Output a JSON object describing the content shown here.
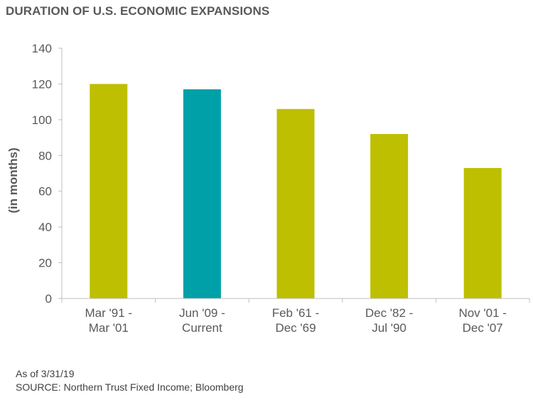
{
  "title": "DURATION OF U.S. ECONOMIC EXPANSIONS",
  "footnote": "As of 3/31/19",
  "source": "SOURCE: Northern Trust Fixed Income; Bloomberg",
  "colors": {
    "default_bar": "#BDBF00",
    "highlight_bar": "#00A0A8",
    "axis": "#BFBFBF",
    "text": "#595959"
  },
  "chart_data": {
    "type": "bar",
    "title": "DURATION OF U.S. ECONOMIC EXPANSIONS",
    "ylabel": "(in months)",
    "xlabel": "",
    "ylim": [
      0,
      140
    ],
    "yticks": [
      0,
      20,
      40,
      60,
      80,
      100,
      120,
      140
    ],
    "grid": false,
    "categories": [
      [
        "Mar '91 -",
        "Mar '01"
      ],
      [
        "Jun '09 -",
        "Current"
      ],
      [
        "Feb '61 -",
        "Dec '69"
      ],
      [
        "Dec '82 -",
        "Jul '90"
      ],
      [
        "Nov '01 -",
        "Dec '07"
      ]
    ],
    "values": [
      120,
      117,
      106,
      92,
      73
    ],
    "highlight_index": 1
  }
}
